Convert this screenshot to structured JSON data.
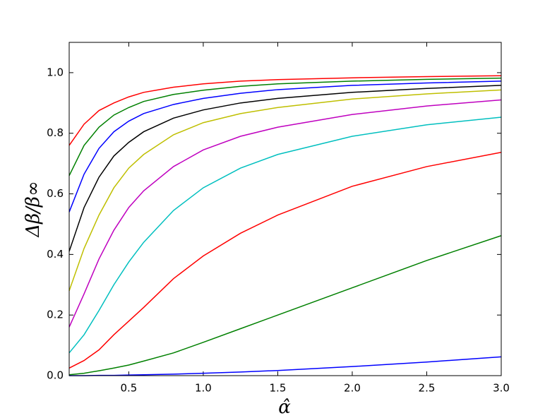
{
  "chart_data": {
    "type": "line",
    "xlabel": "α̂",
    "ylabel": "Δβ/β∞",
    "x": [
      0.1,
      0.2,
      0.3,
      0.4,
      0.5,
      0.6,
      0.8,
      1.0,
      1.25,
      1.5,
      2.0,
      2.5,
      3.0
    ],
    "series": [
      {
        "color": "#ff0000",
        "values": [
          0.76,
          0.83,
          0.875,
          0.9,
          0.92,
          0.935,
          0.952,
          0.963,
          0.972,
          0.977,
          0.983,
          0.987,
          0.99
        ]
      },
      {
        "color": "#008000",
        "values": [
          0.66,
          0.76,
          0.82,
          0.86,
          0.885,
          0.905,
          0.928,
          0.942,
          0.955,
          0.963,
          0.972,
          0.978,
          0.982
        ]
      },
      {
        "color": "#0000ff",
        "values": [
          0.54,
          0.665,
          0.75,
          0.805,
          0.84,
          0.865,
          0.895,
          0.915,
          0.932,
          0.944,
          0.958,
          0.966,
          0.972
        ]
      },
      {
        "color": "#000000",
        "values": [
          0.41,
          0.555,
          0.655,
          0.725,
          0.77,
          0.805,
          0.85,
          0.877,
          0.9,
          0.915,
          0.935,
          0.948,
          0.958
        ]
      },
      {
        "color": "#bfbf00",
        "values": [
          0.28,
          0.42,
          0.53,
          0.62,
          0.685,
          0.73,
          0.795,
          0.835,
          0.865,
          0.885,
          0.913,
          0.93,
          0.943
        ]
      },
      {
        "color": "#bf00bf",
        "values": [
          0.16,
          0.27,
          0.385,
          0.48,
          0.555,
          0.61,
          0.69,
          0.745,
          0.79,
          0.82,
          0.862,
          0.89,
          0.91
        ]
      },
      {
        "color": "#00bfbf",
        "values": [
          0.075,
          0.135,
          0.215,
          0.3,
          0.375,
          0.44,
          0.545,
          0.62,
          0.685,
          0.73,
          0.79,
          0.828,
          0.853
        ]
      },
      {
        "color": "#ff0000",
        "values": [
          0.025,
          0.05,
          0.085,
          0.135,
          0.18,
          0.225,
          0.32,
          0.395,
          0.47,
          0.53,
          0.625,
          0.69,
          0.737
        ]
      },
      {
        "color": "#008000",
        "values": [
          0.003,
          0.008,
          0.016,
          0.025,
          0.035,
          0.048,
          0.075,
          0.11,
          0.155,
          0.2,
          0.29,
          0.38,
          0.462
        ]
      },
      {
        "color": "#0000ff",
        "values": [
          0,
          0,
          0.001,
          0.001,
          0.002,
          0.003,
          0.005,
          0.008,
          0.012,
          0.017,
          0.03,
          0.045,
          0.062
        ]
      }
    ],
    "xlim": [
      0.1,
      3.0
    ],
    "xticks": [
      0.5,
      {
        "value": 1.0,
        "label": "1.0"
      },
      1.5,
      {
        "value": 2.0,
        "label": "2.0"
      },
      2.5,
      {
        "value": 3.0,
        "label": "3.0"
      }
    ],
    "ylim": [
      0,
      1.1
    ],
    "yticks": [
      {
        "value": 0,
        "label": "0.0"
      },
      0.2,
      0.4,
      0.6,
      0.8,
      {
        "value": 1.0,
        "label": "1.0"
      }
    ],
    "grid": false
  }
}
